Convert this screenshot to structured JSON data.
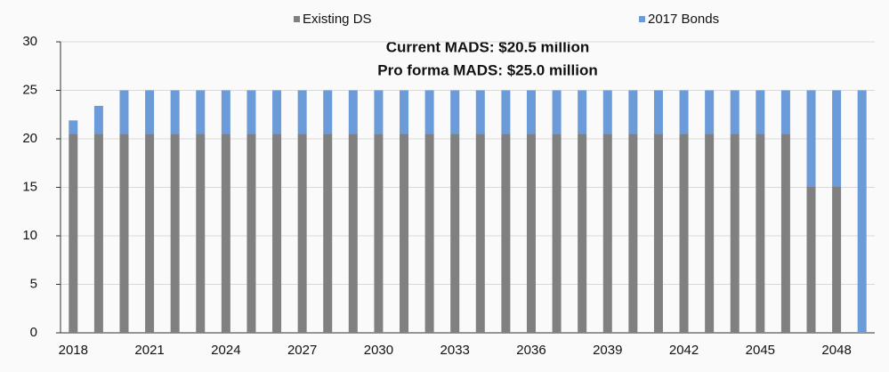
{
  "chart_data": {
    "type": "stacked_bar",
    "annotations": [
      "Current MADS:  $20.5 million",
      "Pro forma MADS:  $25.0 million"
    ],
    "categories": [
      "2018",
      null,
      null,
      "2021",
      null,
      null,
      "2024",
      null,
      null,
      "2027",
      null,
      null,
      "2030",
      null,
      null,
      "2033",
      null,
      null,
      "2036",
      null,
      null,
      "2039",
      null,
      null,
      "2042",
      null,
      null,
      "2045",
      null,
      null,
      "2048",
      null
    ],
    "series": [
      {
        "name": "Existing DS",
        "color": "#808080",
        "values": [
          20.5,
          20.5,
          20.5,
          20.5,
          20.5,
          20.5,
          20.5,
          20.5,
          20.5,
          20.5,
          20.5,
          20.5,
          20.5,
          20.5,
          20.5,
          20.5,
          20.5,
          20.5,
          20.5,
          20.5,
          20.5,
          20.5,
          20.5,
          20.5,
          20.5,
          20.5,
          20.5,
          20.5,
          20.5,
          15.1,
          15.1,
          0
        ]
      },
      {
        "name": "2017 Bonds",
        "color": "#6b9bd8",
        "values": [
          1.4,
          2.9,
          4.5,
          4.5,
          4.5,
          4.5,
          4.5,
          4.5,
          4.5,
          4.5,
          4.5,
          4.5,
          4.5,
          4.5,
          4.5,
          4.5,
          4.5,
          4.5,
          4.5,
          4.5,
          4.5,
          4.5,
          4.5,
          4.5,
          4.5,
          4.5,
          4.5,
          4.5,
          4.5,
          9.9,
          9.9,
          25
        ]
      }
    ],
    "ylim": [
      0,
      30
    ],
    "yticks": [
      0,
      5,
      10,
      15,
      20,
      25,
      30
    ],
    "grid": true,
    "legend": "top"
  }
}
